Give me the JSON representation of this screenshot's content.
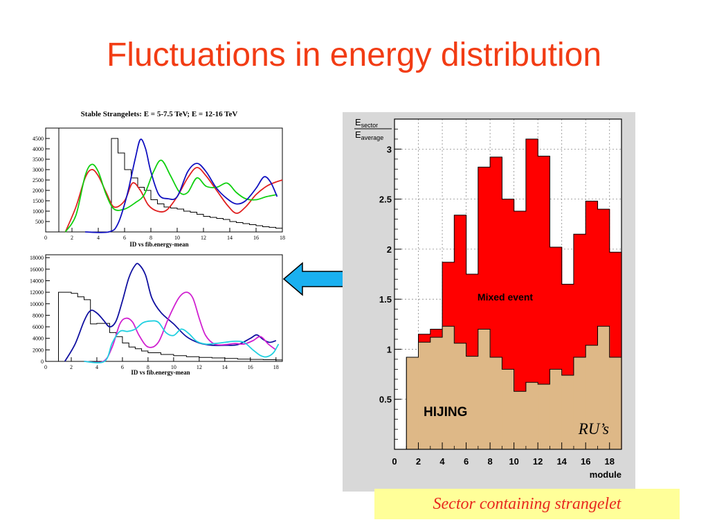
{
  "slide": {
    "title": "Fluctuations in energy distribution",
    "caption": "Sector containing strangelet",
    "colors": {
      "title": "#f23c14",
      "caption_bg": "#ffff99",
      "caption_text": "#e8281e",
      "arrow": "#1ab0f0"
    }
  },
  "chart_data": [
    {
      "type": "line",
      "title": "Stable Strangelets: E = 5-7.5 TeV; E = 12-16 TeV",
      "xlabel": "ID vs fib.energy-mean",
      "ylabel": "",
      "xlim": [
        0,
        18
      ],
      "ylim": [
        0,
        5000
      ],
      "x_ticks": [
        0,
        2,
        4,
        6,
        8,
        10,
        12,
        14,
        16,
        18
      ],
      "y_ticks": [
        500,
        1000,
        1500,
        2000,
        2500,
        3000,
        3500,
        4000,
        4500
      ],
      "grid": false,
      "legend": "none",
      "step_series": {
        "color": "#000000",
        "edges": [
          5,
          5.5,
          6,
          6.5,
          7,
          7.5,
          8,
          8.5,
          9,
          9.5,
          10,
          10.5,
          11,
          11.5,
          12,
          12.5,
          13,
          13.5,
          14,
          14.5,
          15,
          15.5,
          16,
          16.5,
          17,
          17.5,
          18
        ],
        "values": [
          4500,
          3800,
          3000,
          2600,
          2150,
          2000,
          1550,
          1350,
          1200,
          1150,
          1100,
          1000,
          950,
          850,
          750,
          700,
          650,
          600,
          500,
          450,
          400,
          350,
          300,
          250,
          220,
          180
        ]
      },
      "vline": {
        "x": 1,
        "y_top": 5000,
        "color": "#000000"
      },
      "series": [
        {
          "color": "#e02020",
          "x": [
            1.5,
            2.3,
            3,
            3.5,
            4,
            4.6,
            5.2,
            6,
            6.6,
            7.2,
            7.8,
            8.5,
            9.2,
            10,
            10.8,
            11.5,
            12.2,
            13,
            13.8,
            14.5,
            15.2,
            16,
            16.8,
            17.5,
            18
          ],
          "y": [
            0,
            1200,
            2600,
            3000,
            2700,
            1900,
            1200,
            1500,
            2350,
            2000,
            1300,
            1000,
            1050,
            1700,
            2600,
            3100,
            2700,
            2000,
            1300,
            900,
            1200,
            1800,
            2200,
            2400,
            2500
          ]
        },
        {
          "color": "#10d010",
          "x": [
            1.5,
            2.3,
            3,
            3.5,
            4,
            4.6,
            5.2,
            6,
            6.8,
            7.5,
            8.2,
            8.8,
            9.5,
            10.2,
            10.8,
            11.5,
            12.2,
            13,
            13.8,
            14.5,
            15.2,
            16,
            16.8,
            17.6
          ],
          "y": [
            0,
            800,
            2700,
            3250,
            2900,
            1800,
            1100,
            1100,
            1400,
            1800,
            2900,
            3450,
            2700,
            1900,
            1900,
            2600,
            2200,
            2150,
            2350,
            1900,
            1600,
            1550,
            1700,
            1800
          ]
        },
        {
          "color": "#1010c0",
          "x": [
            3,
            4.8,
            5.5,
            6.2,
            6.8,
            7.2,
            7.6,
            8,
            8.6,
            9.3,
            10,
            10.8,
            11.5,
            12.2,
            13,
            13.8,
            14.5,
            15.2,
            16,
            16.6,
            17.1,
            17.6
          ],
          "y": [
            0,
            0,
            400,
            1800,
            3500,
            4450,
            4000,
            2900,
            1800,
            1600,
            1700,
            2900,
            3300,
            2900,
            2100,
            1600,
            1350,
            1500,
            2100,
            2650,
            2400,
            1700
          ]
        }
      ]
    },
    {
      "type": "line",
      "title": "",
      "xlabel": "ID vs fib.energy-mean",
      "ylabel": "",
      "xlim": [
        0,
        18.5
      ],
      "ylim": [
        0,
        18500
      ],
      "x_ticks": [
        0,
        2,
        4,
        6,
        8,
        10,
        12,
        14,
        16,
        18
      ],
      "y_ticks": [
        0,
        2000,
        4000,
        6000,
        8000,
        10000,
        12000,
        14000,
        16000,
        18000
      ],
      "grid": false,
      "legend": "none",
      "step_series": {
        "color": "#000000",
        "edges": [
          1,
          2,
          2.5,
          3,
          3.5,
          4,
          5,
          5.5,
          6,
          6.5,
          7,
          7.5,
          8,
          9,
          10,
          11,
          12,
          13,
          14,
          15,
          16,
          17,
          18,
          18.5
        ],
        "values": [
          12000,
          11800,
          11200,
          10700,
          6500,
          6600,
          5000,
          4300,
          3200,
          2500,
          2200,
          1800,
          1500,
          1200,
          1000,
          800,
          700,
          600,
          500,
          400,
          350,
          300,
          250
        ]
      },
      "series": [
        {
          "color": "#1010a0",
          "x": [
            1.5,
            2.3,
            3,
            3.5,
            4,
            4.5,
            5,
            5.5,
            6,
            6.5,
            7,
            7.3,
            7.8,
            8.3,
            9,
            10,
            11,
            12,
            13,
            14,
            15,
            16,
            16.5,
            17,
            17.5,
            18
          ],
          "y": [
            0,
            3000,
            7000,
            8800,
            8400,
            7200,
            6000,
            7000,
            10500,
            14500,
            16700,
            16800,
            15000,
            11000,
            8500,
            6500,
            4300,
            3200,
            2800,
            2800,
            2900,
            4000,
            4600,
            3800,
            3300,
            3600
          ]
        },
        {
          "color": "#d020d0",
          "x": [
            3,
            4.5,
            5.2,
            5.8,
            6.3,
            6.8,
            7.3,
            8,
            8.8,
            9.6,
            10.4,
            11,
            11.5,
            12,
            12.5,
            13.2,
            14,
            14.8,
            15.5,
            16.2,
            16.8,
            17.4,
            18
          ],
          "y": [
            0,
            0,
            2500,
            6500,
            7500,
            6800,
            4500,
            2500,
            3300,
            7500,
            11000,
            12000,
            11000,
            7500,
            4500,
            3000,
            2900,
            3100,
            3000,
            3600,
            4300,
            3000,
            2000
          ]
        },
        {
          "color": "#20d0e0",
          "x": [
            3,
            4.6,
            5.2,
            5.8,
            6.4,
            7,
            7.6,
            8.2,
            8.8,
            9.4,
            10,
            10.6,
            11.2,
            11.8,
            12.5,
            13.2,
            14,
            14.8,
            15.5,
            16.2,
            16.8,
            17.3,
            17.8,
            18.2
          ],
          "y": [
            0,
            0,
            3200,
            5200,
            5200,
            5600,
            6700,
            7000,
            6800,
            5000,
            4500,
            5600,
            4800,
            3500,
            3000,
            3100,
            3300,
            3500,
            3300,
            2000,
            1000,
            800,
            1500,
            3000
          ]
        }
      ]
    },
    {
      "type": "bar",
      "title": "",
      "ylabel": "E sector / E average",
      "ylabel_parts": {
        "num": "E",
        "num_sub": "sector",
        "den": "E",
        "den_sub": "average"
      },
      "xlabel": "module",
      "xlim": [
        0,
        19
      ],
      "ylim": [
        0,
        3.3
      ],
      "x_ticks": [
        0,
        2,
        4,
        6,
        8,
        10,
        12,
        14,
        16,
        18
      ],
      "y_ticks": [
        0.5,
        1,
        1.5,
        2,
        2.5,
        3
      ],
      "grid": true,
      "legend": "none",
      "bin_edges": [
        1,
        2,
        3,
        4,
        5,
        6,
        7,
        8,
        9,
        10,
        11,
        12,
        13,
        14,
        15,
        16,
        17,
        18,
        19
      ],
      "series": [
        {
          "name": "Mixed event",
          "color": "#ff0000",
          "values": [
            0.92,
            1.15,
            1.2,
            1.87,
            2.34,
            1.75,
            2.82,
            2.92,
            2.5,
            2.38,
            3.1,
            2.93,
            2.02,
            1.65,
            2.15,
            2.48,
            2.4,
            1.97
          ]
        },
        {
          "name": "HIJING",
          "color": "#deb887",
          "values": [
            0.92,
            1.07,
            1.12,
            1.23,
            1.06,
            0.93,
            1.2,
            0.92,
            0.8,
            0.58,
            0.67,
            0.65,
            0.8,
            0.74,
            0.92,
            1.04,
            1.23,
            0.92
          ]
        }
      ],
      "annotation": "RU’s"
    }
  ]
}
